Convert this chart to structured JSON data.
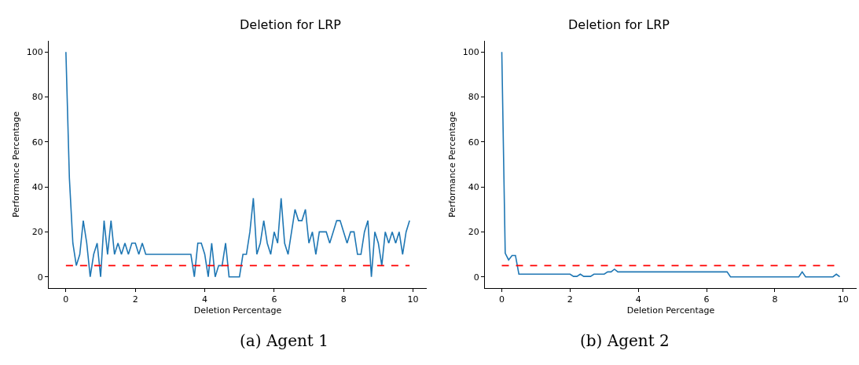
{
  "chart_data": [
    {
      "type": "line",
      "title": "Deletion for LRP",
      "xlabel": "Deletion Percentage",
      "ylabel": "Performance Percentage",
      "annotations": [
        "(a) Agent 1"
      ],
      "x": [
        0,
        0.1,
        0.2,
        0.3,
        0.4,
        0.5,
        0.6,
        0.7,
        0.8,
        0.9,
        1,
        1.1,
        1.2,
        1.3,
        1.4,
        1.5,
        1.6,
        1.7,
        1.8,
        1.9,
        2,
        2.1,
        2.2,
        2.3,
        2.4,
        2.5,
        2.6,
        2.7,
        2.8,
        2.9,
        3,
        3.1,
        3.2,
        3.3,
        3.4,
        3.5,
        3.6,
        3.7,
        3.8,
        3.9,
        4,
        4.1,
        4.2,
        4.3,
        4.4,
        4.5,
        4.6,
        4.7,
        4.8,
        4.9,
        5,
        5.1,
        5.2,
        5.3,
        5.4,
        5.5,
        5.6,
        5.7,
        5.8,
        5.9,
        6,
        6.1,
        6.2,
        6.3,
        6.4,
        6.5,
        6.6,
        6.7,
        6.8,
        6.9,
        7,
        7.1,
        7.2,
        7.3,
        7.4,
        7.5,
        7.6,
        7.7,
        7.8,
        7.9,
        8,
        8.1,
        8.2,
        8.3,
        8.4,
        8.5,
        8.6,
        8.7,
        8.8,
        8.9,
        9,
        9.1,
        9.2,
        9.3,
        9.4,
        9.5,
        9.6,
        9.7,
        9.8,
        9.9
      ],
      "series": [
        {
          "color": "#1f77b4",
          "values": [
            100,
            44,
            15,
            5,
            10,
            25,
            15,
            0,
            10,
            15,
            0,
            25,
            10,
            25,
            10,
            15,
            10,
            15,
            10,
            15,
            15,
            10,
            15,
            10,
            10,
            10,
            10,
            10,
            10,
            10,
            10,
            10,
            10,
            10,
            10,
            10,
            10,
            0,
            15,
            15,
            10,
            0,
            15,
            0,
            5,
            5,
            15,
            0,
            0,
            0,
            0,
            10,
            10,
            20,
            35,
            10,
            15,
            25,
            15,
            10,
            20,
            15,
            35,
            15,
            10,
            20,
            30,
            25,
            25,
            30,
            15,
            20,
            10,
            20,
            20,
            20,
            15,
            20,
            25,
            25,
            20,
            15,
            20,
            20,
            10,
            10,
            20,
            25,
            0,
            20,
            15,
            5,
            20,
            15,
            20,
            15,
            20,
            10,
            20,
            25
          ]
        }
      ],
      "ref_lines": [
        {
          "axis": "y",
          "value": 5,
          "color": "#ff0000",
          "line_style": "dashed"
        }
      ],
      "xlim": [
        -0.495,
        10.395
      ],
      "ylim": [
        -5,
        105
      ],
      "xticks": [
        0,
        2,
        4,
        6,
        8,
        10
      ],
      "yticks": [
        0,
        20,
        40,
        60,
        80,
        100
      ],
      "marker": "none",
      "line_style": "solid"
    },
    {
      "type": "line",
      "title": "Deletion for LRP",
      "xlabel": "Deletion Percentage",
      "ylabel": "Performance Percentage",
      "annotations": [
        "(b) Agent 2"
      ],
      "x": [
        0,
        0.1,
        0.2,
        0.3,
        0.4,
        0.5,
        0.6,
        0.7,
        0.8,
        0.9,
        1,
        1.1,
        1.2,
        1.3,
        1.4,
        1.5,
        1.6,
        1.7,
        1.8,
        1.9,
        2,
        2.1,
        2.2,
        2.3,
        2.4,
        2.5,
        2.6,
        2.7,
        2.8,
        2.9,
        3,
        3.1,
        3.2,
        3.3,
        3.4,
        3.5,
        3.6,
        3.7,
        3.8,
        3.9,
        4,
        4.1,
        4.2,
        4.3,
        4.4,
        4.5,
        4.6,
        4.7,
        4.8,
        4.9,
        5,
        5.1,
        5.2,
        5.3,
        5.4,
        5.5,
        5.6,
        5.7,
        5.8,
        5.9,
        6,
        6.1,
        6.2,
        6.3,
        6.4,
        6.5,
        6.6,
        6.7,
        6.8,
        6.9,
        7,
        7.1,
        7.2,
        7.3,
        7.4,
        7.5,
        7.6,
        7.7,
        7.8,
        7.9,
        8,
        8.1,
        8.2,
        8.3,
        8.4,
        8.5,
        8.6,
        8.7,
        8.8,
        8.9,
        9,
        9.1,
        9.2,
        9.3,
        9.4,
        9.5,
        9.6,
        9.7,
        9.8,
        9.9
      ],
      "series": [
        {
          "color": "#1f77b4",
          "values": [
            100,
            10.5,
            7.5,
            9.5,
            9.5,
            1.2,
            1.2,
            1.2,
            1.2,
            1.2,
            1.2,
            1.2,
            1.2,
            1.2,
            1.2,
            1.2,
            1.2,
            1.2,
            1.2,
            1.2,
            1.2,
            0.2,
            0.2,
            1.2,
            0.2,
            0.2,
            0.2,
            1.2,
            1.2,
            1.2,
            1.2,
            2.2,
            2.2,
            3.4,
            2.2,
            2.2,
            2.2,
            2.2,
            2.2,
            2.2,
            2.2,
            2.2,
            2.2,
            2.2,
            2.2,
            2.2,
            2.2,
            2.2,
            2.2,
            2.2,
            2.2,
            2.2,
            2.2,
            2.2,
            2.2,
            2.2,
            2.2,
            2.2,
            2.2,
            2.2,
            2.2,
            2.2,
            2.2,
            2.2,
            2.2,
            2.2,
            2.2,
            0,
            0,
            0,
            0,
            0,
            0,
            0,
            0,
            0,
            0,
            0,
            0,
            0,
            0,
            0,
            0,
            0,
            0,
            0,
            0,
            0,
            2.2,
            0,
            0,
            0,
            0,
            0,
            0,
            0,
            0,
            0,
            1.2,
            0
          ]
        }
      ],
      "ref_lines": [
        {
          "axis": "y",
          "value": 5,
          "color": "#ff0000",
          "line_style": "dashed"
        }
      ],
      "xlim": [
        -0.495,
        10.395
      ],
      "ylim": [
        -5,
        105
      ],
      "xticks": [
        0,
        2,
        4,
        6,
        8,
        10
      ],
      "yticks": [
        0,
        20,
        40,
        60,
        80,
        100
      ],
      "marker": "none",
      "line_style": "solid"
    }
  ]
}
